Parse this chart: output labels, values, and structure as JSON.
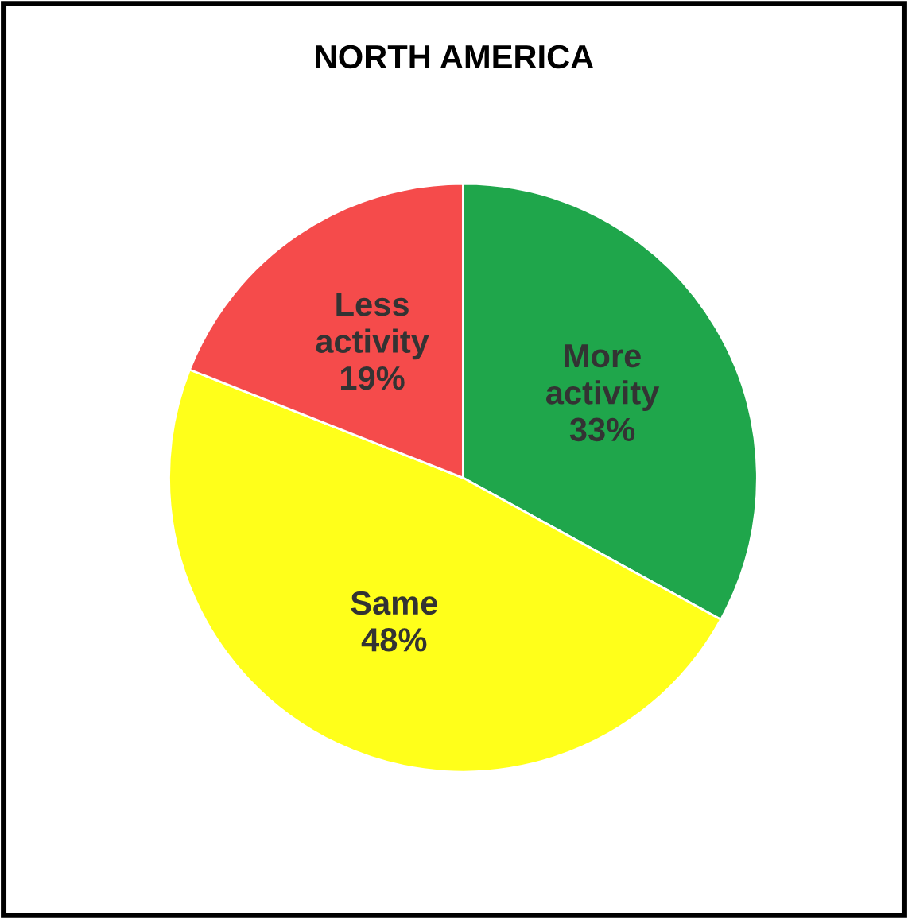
{
  "chart_data": {
    "type": "pie",
    "title": "NORTH AMERICA",
    "categories": [
      "More activity",
      "Same",
      "Less activity"
    ],
    "values": [
      33,
      48,
      19
    ],
    "colors": [
      "#1fa64b",
      "#ffff1a",
      "#f54b4b"
    ],
    "value_labels": [
      "33%",
      "48%",
      "19%"
    ],
    "legend": false
  }
}
